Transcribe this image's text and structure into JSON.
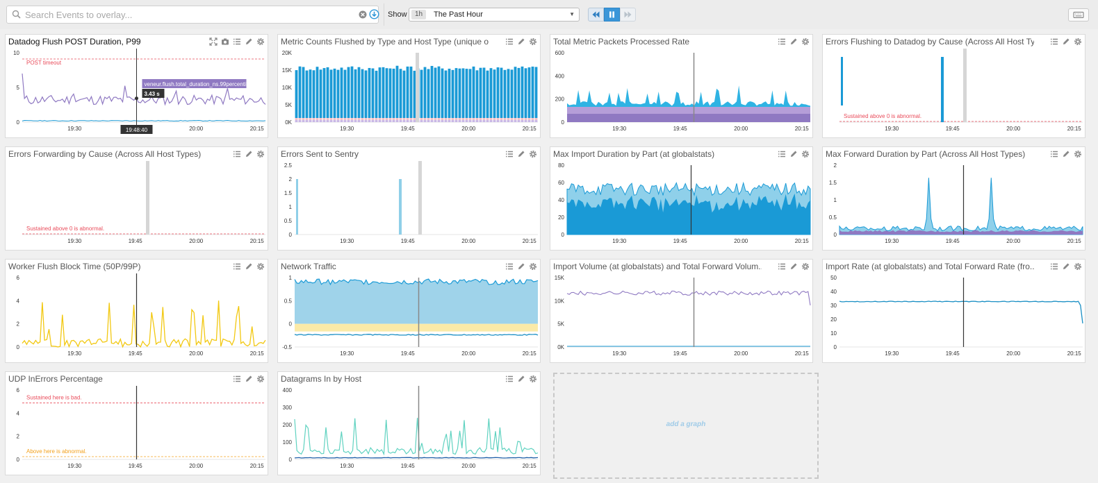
{
  "search": {
    "placeholder": "Search Events to overlay..."
  },
  "timeframe": {
    "show_label": "Show",
    "badge": "1h",
    "value": "The Past Hour"
  },
  "add_graph_label": "add a graph",
  "icons": {
    "search": "search-icon",
    "clear": "clear-circle-icon",
    "overlay": "overlay-events-icon",
    "back": "rewind-icon",
    "pause": "pause-icon",
    "forward": "fast-forward-icon",
    "keyboard": "keyboard-icon",
    "expand": "expand-icon",
    "snapshot": "camera-icon",
    "legend": "list-icon",
    "edit": "pencil-icon",
    "settings": "gear-icon"
  },
  "colors": {
    "purple": "#8f79c2",
    "blue": "#1a9ad6",
    "lightblue": "#8fd0ea",
    "yellow": "#f2c811",
    "teal": "#5fd2c0",
    "red_threshold": "#e94b5a",
    "orange_threshold": "#f3a11d",
    "cursor": "#333333"
  },
  "widgets": [
    {
      "title": "Datadog Flush POST Duration, P99",
      "x_ticks": [
        "19:30",
        "19:45",
        "20:00",
        "20:15"
      ],
      "y_ticks": [
        "10",
        "5",
        "0"
      ],
      "annotation": "POST timeout",
      "tooltip_metric": "veneur.flush.total_duration_ns.99percentile",
      "tooltip_value": "3.43 s",
      "cursor_time": "19:48:40"
    },
    {
      "title": "Metric Counts Flushed by Type and Host Type (unique o...",
      "x_ticks": [
        "19:30",
        "19:45",
        "20:00",
        "20:15"
      ],
      "y_ticks": [
        "20K",
        "15K",
        "10K",
        "5K",
        "0K"
      ]
    },
    {
      "title": "Total Metric Packets Processed Rate",
      "x_ticks": [
        "19:30",
        "19:45",
        "20:00",
        "20:15"
      ],
      "y_ticks": [
        "600",
        "400",
        "200",
        "0"
      ]
    },
    {
      "title": "Errors Flushing to Datadog by Cause (Across All Host Ty...",
      "x_ticks": [
        "19:30",
        "19:45",
        "20:00",
        "20:15"
      ],
      "y_ticks": [],
      "annotation": "Sustained above 0 is abnormal."
    },
    {
      "title": "Errors Forwarding by Cause (Across All Host Types)",
      "x_ticks": [
        "19:30",
        "19:45",
        "20:00",
        "20:15"
      ],
      "y_ticks": [],
      "annotation": "Sustained above 0 is abnormal."
    },
    {
      "title": "Errors Sent to Sentry",
      "x_ticks": [
        "19:30",
        "19:45",
        "20:00",
        "20:15"
      ],
      "y_ticks": [
        "2.5",
        "2",
        "1.5",
        "1",
        "0.5",
        "0"
      ]
    },
    {
      "title": "Max Import Duration by Part (at globalstats)",
      "x_ticks": [
        "19:30",
        "19:45",
        "20:00",
        "20:15"
      ],
      "y_ticks": [
        "80",
        "60",
        "40",
        "20",
        "0"
      ]
    },
    {
      "title": "Max Forward Duration by Part (Across All Host Types)",
      "x_ticks": [
        "19:30",
        "19:45",
        "20:00",
        "20:15"
      ],
      "y_ticks": [
        "2",
        "1.5",
        "1",
        "0.5",
        "0"
      ]
    },
    {
      "title": "Worker Flush Block Time (50P/99P)",
      "x_ticks": [
        "19:30",
        "19:45",
        "20:00",
        "20:15"
      ],
      "y_ticks": [
        "6",
        "4",
        "2",
        "0"
      ]
    },
    {
      "title": "Network Traffic",
      "x_ticks": [
        "19:30",
        "19:45",
        "20:00",
        "20:15"
      ],
      "y_ticks": [
        "1",
        "0.5",
        "0",
        "-0.5"
      ]
    },
    {
      "title": "Import Volume (at globalstats) and Total Forward Volum...",
      "x_ticks": [
        "19:30",
        "19:45",
        "20:00",
        "20:15"
      ],
      "y_ticks": [
        "15K",
        "10K",
        "5K",
        "0K"
      ]
    },
    {
      "title": "Import Rate (at globalstats) and Total Forward Rate (fro...",
      "x_ticks": [
        "19:30",
        "19:45",
        "20:00",
        "20:15"
      ],
      "y_ticks": [
        "50",
        "40",
        "30",
        "20",
        "10",
        "0"
      ]
    },
    {
      "title": "UDP InErrors Percentage",
      "x_ticks": [
        "19:30",
        "19:45",
        "20:00",
        "20:15"
      ],
      "y_ticks": [
        "6",
        "4",
        "2",
        "0"
      ],
      "annotation": "Sustained here is bad.",
      "annotation2": "Above here is abnormal."
    },
    {
      "title": "Datagrams In by Host",
      "x_ticks": [
        "19:30",
        "19:45",
        "20:00",
        "20:15"
      ],
      "y_ticks": [
        "400",
        "300",
        "200",
        "100",
        "0"
      ]
    }
  ]
}
